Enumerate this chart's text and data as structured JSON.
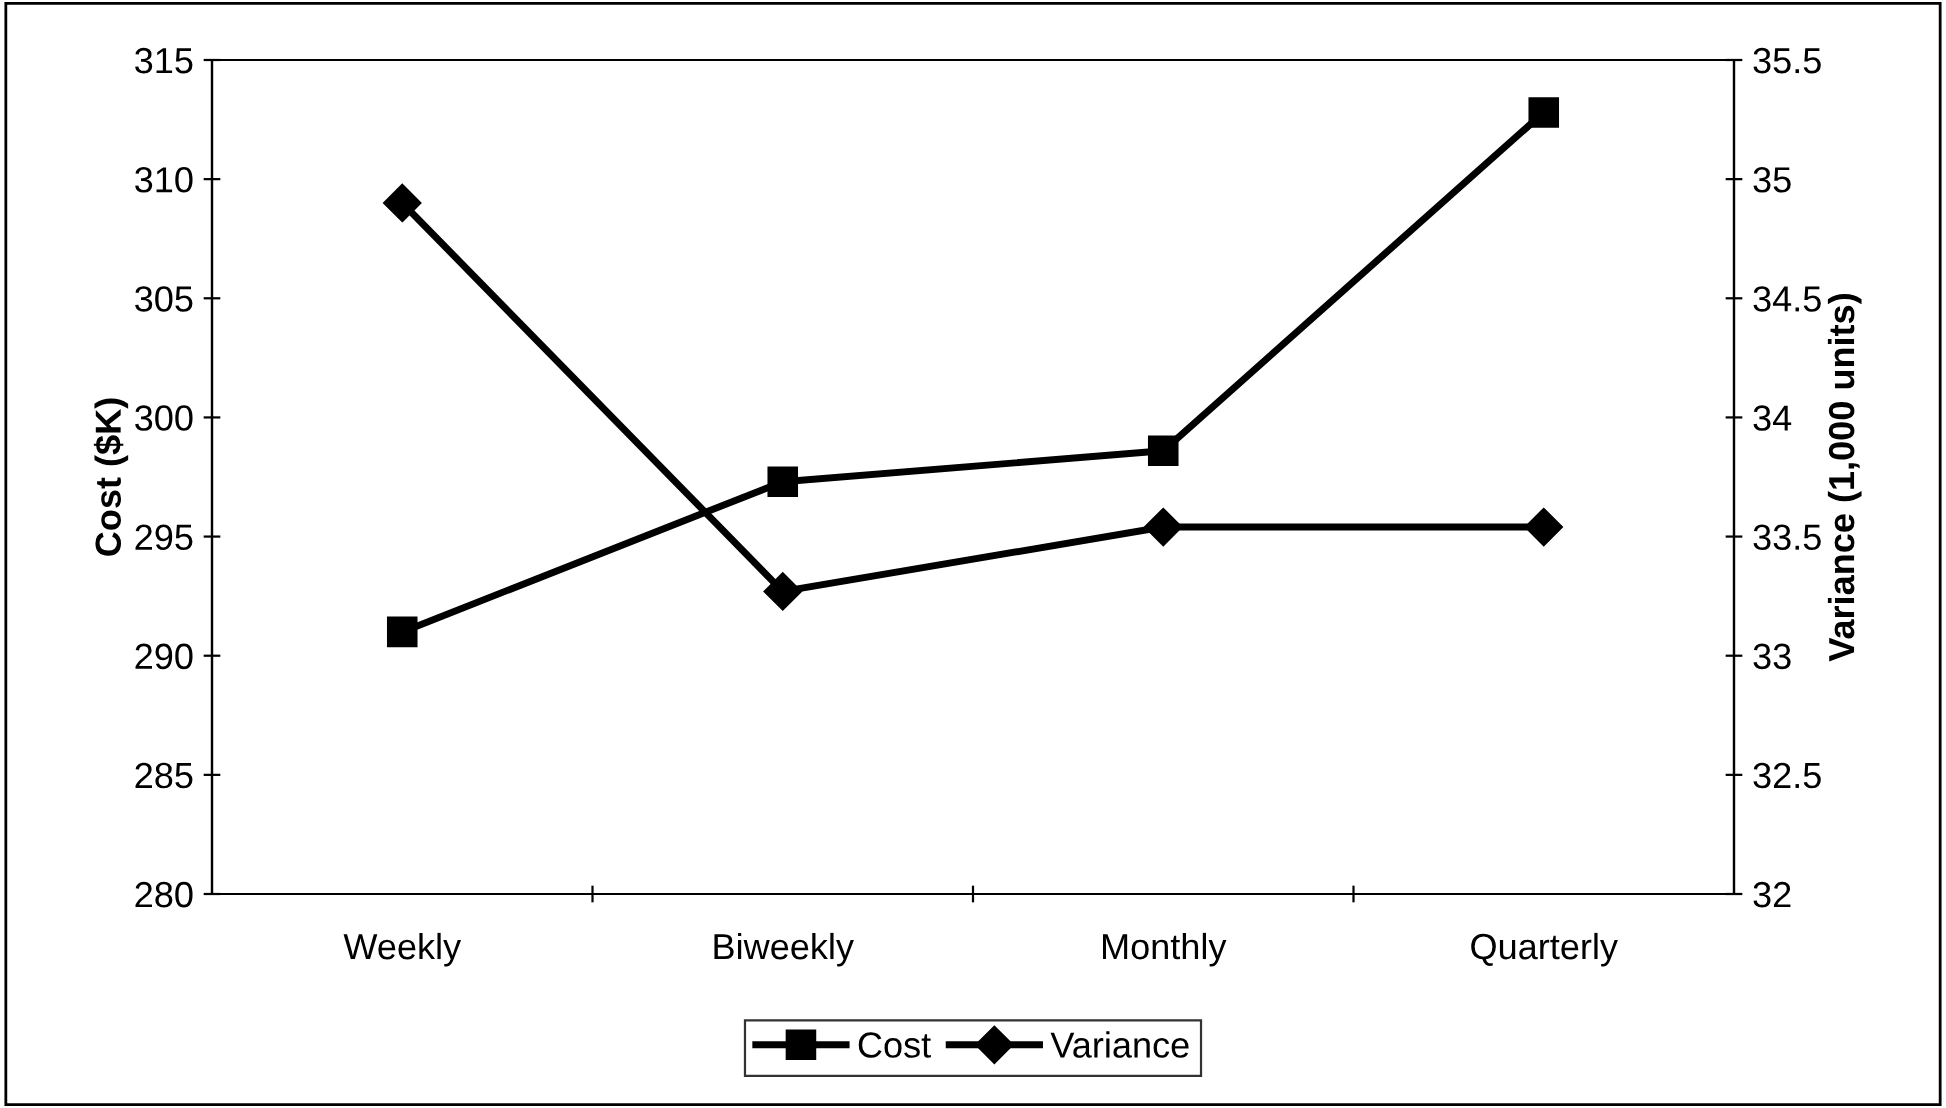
{
  "chart_data": {
    "type": "line",
    "categories": [
      "Weekly",
      "Biweekly",
      "Monthly",
      "Quarterly"
    ],
    "series": [
      {
        "name": "Cost",
        "color": "#000000",
        "values": [
          291.0,
          297.3,
          298.6,
          312.8
        ],
        "marker": "square"
      },
      {
        "name": "Variance",
        "color": "#000000",
        "values": [
          34.9,
          33.27,
          33.54,
          33.54
        ],
        "marker": "diamond",
        "axis": "y2"
      }
    ],
    "ylabel": "Cost ($K)",
    "y2label": "Variance (1,000 units)",
    "ylim": [
      280,
      315
    ],
    "yticks": [
      280,
      285,
      290,
      295,
      300,
      305,
      310,
      315
    ],
    "y2lim": [
      32,
      35.5
    ],
    "y2ticks": [
      32,
      32.5,
      33,
      33.5,
      34,
      34.5,
      35,
      35.5
    ],
    "grid": false,
    "legend": "bottom",
    "line_style": "solid"
  }
}
